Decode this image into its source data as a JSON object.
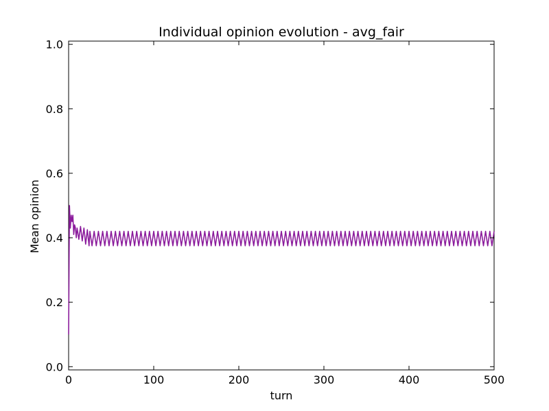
{
  "chart_data": {
    "type": "line",
    "title": "Individual opinion evolution - avg_fair",
    "xlabel": "turn",
    "ylabel": "Mean opinion",
    "xlim": [
      0,
      500
    ],
    "ylim": [
      -0.01,
      1.01
    ],
    "xticks": [
      0,
      100,
      200,
      300,
      400,
      500
    ],
    "yticks": [
      0.0,
      0.2,
      0.4,
      0.6,
      0.8,
      1.0
    ],
    "xtick_labels": [
      "0",
      "100",
      "200",
      "300",
      "400",
      "500"
    ],
    "ytick_labels": [
      "0.0",
      "0.2",
      "0.4",
      "0.6",
      "0.8",
      "1.0"
    ],
    "grid": false,
    "series": [
      {
        "color": "#8b1c9c",
        "oscillation": {
          "start": 0.1,
          "initial_peak": 0.5,
          "center": 0.3975,
          "amplitude": 0.0225,
          "period": 5,
          "settled_from_turn": 25
        },
        "points": [
          [
            0,
            0.1
          ],
          [
            1,
            0.5
          ],
          [
            2,
            0.43
          ],
          [
            3,
            0.47
          ],
          [
            4,
            0.45
          ],
          [
            5,
            0.47
          ],
          [
            6,
            0.41
          ],
          [
            7,
            0.44
          ],
          [
            8,
            0.43
          ],
          [
            9,
            0.4
          ],
          [
            10,
            0.43
          ],
          [
            12,
            0.395
          ],
          [
            14,
            0.435
          ],
          [
            16,
            0.39
          ],
          [
            18,
            0.43
          ],
          [
            20,
            0.38
          ],
          [
            22,
            0.425
          ],
          [
            24,
            0.375
          ],
          [
            25,
            0.42
          ]
        ]
      }
    ]
  }
}
